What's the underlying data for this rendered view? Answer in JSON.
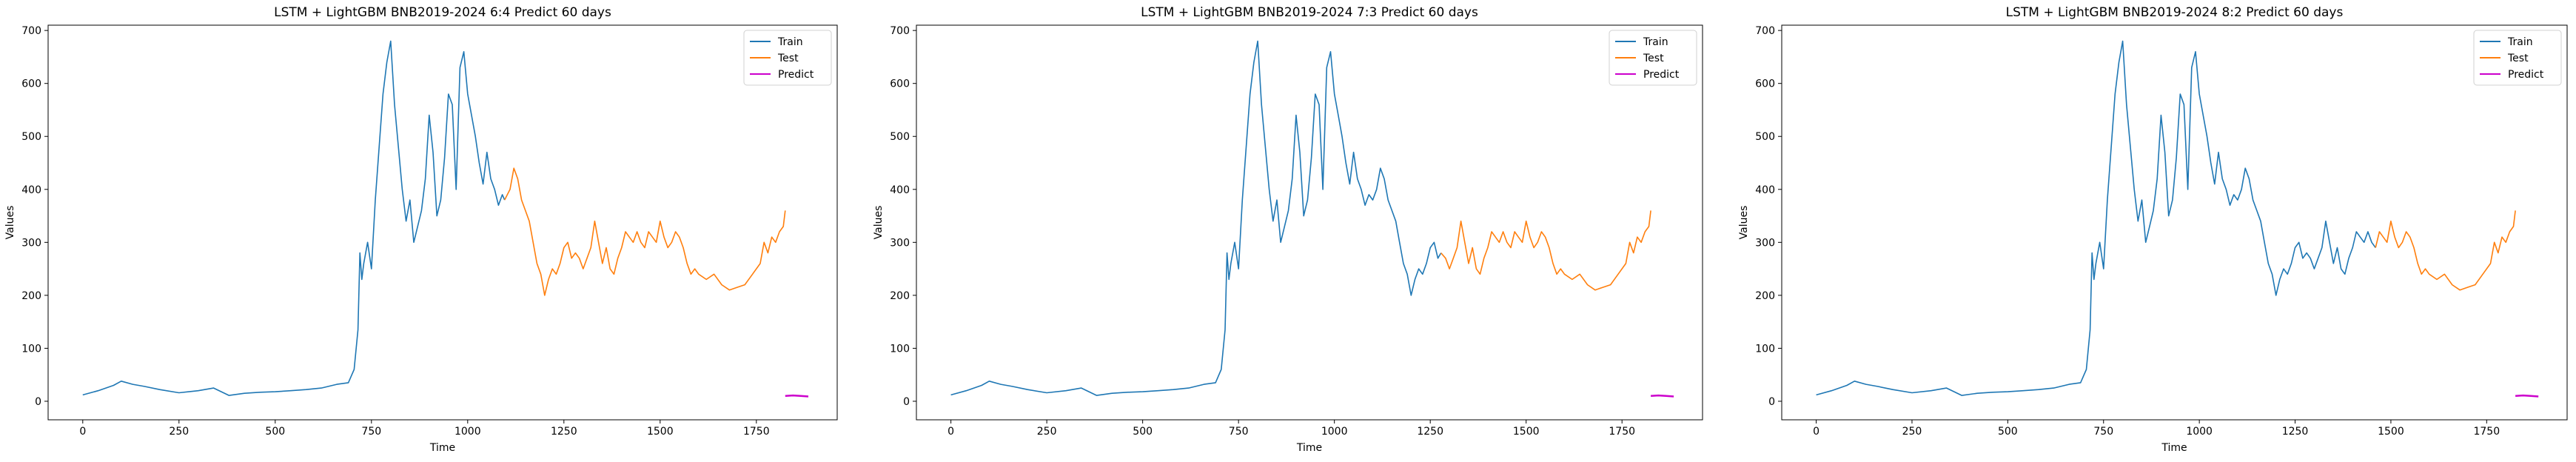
{
  "chart_data": [
    {
      "type": "line",
      "title": "LSTM + LightGBM BNB2019-2024 6:4 Predict 60 days",
      "xlabel": "Time",
      "ylabel": "Values",
      "xlim": [
        -90,
        1960
      ],
      "ylim": [
        -35,
        710
      ],
      "xticks": [
        0,
        250,
        500,
        750,
        1000,
        1250,
        1500,
        1750
      ],
      "yticks": [
        0,
        100,
        200,
        300,
        400,
        500,
        600,
        700
      ],
      "grid": false,
      "legend": "top-right",
      "series": [
        {
          "name": "Train",
          "color": "#1f77b4",
          "x": [
            0,
            40,
            80,
            100,
            130,
            160,
            200,
            250,
            300,
            340,
            380,
            420,
            460,
            500,
            540,
            580,
            620,
            660,
            690,
            705,
            715,
            720,
            725,
            730,
            740,
            750,
            760,
            770,
            780,
            790,
            800,
            810,
            820,
            830,
            840,
            850,
            860,
            870,
            880,
            890,
            900,
            910,
            920,
            930,
            940,
            950,
            960,
            970,
            980,
            990,
            1000,
            1010,
            1020,
            1030,
            1040,
            1050,
            1060,
            1070,
            1080,
            1090,
            1096
          ],
          "y": [
            12,
            20,
            30,
            38,
            32,
            28,
            22,
            16,
            20,
            25,
            11,
            15,
            17,
            18,
            20,
            22,
            25,
            32,
            35,
            60,
            135,
            280,
            230,
            260,
            300,
            250,
            380,
            480,
            580,
            640,
            680,
            560,
            480,
            400,
            340,
            380,
            300,
            330,
            360,
            420,
            540,
            470,
            350,
            380,
            460,
            580,
            560,
            400,
            630,
            660,
            580,
            540,
            500,
            450,
            410,
            470,
            420,
            400,
            370,
            390,
            380
          ]
        },
        {
          "name": "Test",
          "color": "#ff7f0e",
          "x": [
            1096,
            1110,
            1120,
            1130,
            1140,
            1150,
            1160,
            1170,
            1180,
            1190,
            1200,
            1210,
            1220,
            1230,
            1240,
            1250,
            1260,
            1270,
            1280,
            1290,
            1300,
            1310,
            1320,
            1330,
            1340,
            1350,
            1360,
            1370,
            1380,
            1390,
            1400,
            1410,
            1420,
            1430,
            1440,
            1450,
            1460,
            1470,
            1480,
            1490,
            1500,
            1510,
            1520,
            1530,
            1540,
            1550,
            1560,
            1570,
            1580,
            1590,
            1600,
            1620,
            1640,
            1660,
            1680,
            1700,
            1720,
            1740,
            1760,
            1770,
            1780,
            1790,
            1800,
            1810,
            1820,
            1825
          ],
          "y": [
            380,
            400,
            440,
            420,
            380,
            360,
            340,
            300,
            260,
            240,
            200,
            230,
            250,
            240,
            260,
            290,
            300,
            270,
            280,
            270,
            250,
            270,
            290,
            340,
            300,
            260,
            290,
            250,
            240,
            270,
            290,
            320,
            310,
            300,
            320,
            300,
            290,
            320,
            310,
            300,
            340,
            310,
            290,
            300,
            320,
            310,
            290,
            260,
            240,
            250,
            240,
            230,
            240,
            220,
            210,
            215,
            220,
            240,
            260,
            300,
            280,
            310,
            300,
            320,
            330,
            360
          ]
        },
        {
          "name": "Predict",
          "color": "#cc00cc",
          "x": [
            1825,
            1845,
            1865,
            1885
          ],
          "y": [
            10,
            11,
            10,
            9
          ]
        }
      ]
    },
    {
      "type": "line",
      "title": "LSTM + LightGBM BNB2019-2024 7:3 Predict 60 days",
      "xlabel": "Time",
      "ylabel": "Values",
      "xlim": [
        -90,
        1960
      ],
      "ylim": [
        -35,
        710
      ],
      "xticks": [
        0,
        250,
        500,
        750,
        1000,
        1250,
        1500,
        1750
      ],
      "yticks": [
        0,
        100,
        200,
        300,
        400,
        500,
        600,
        700
      ],
      "grid": false,
      "legend": "top-right",
      "series": [
        {
          "name": "Train",
          "color": "#1f77b4",
          "x": [
            0,
            40,
            80,
            100,
            130,
            160,
            200,
            250,
            300,
            340,
            380,
            420,
            460,
            500,
            540,
            580,
            620,
            660,
            690,
            705,
            715,
            720,
            725,
            730,
            740,
            750,
            760,
            770,
            780,
            790,
            800,
            810,
            820,
            830,
            840,
            850,
            860,
            870,
            880,
            890,
            900,
            910,
            920,
            930,
            940,
            950,
            960,
            970,
            980,
            990,
            1000,
            1010,
            1020,
            1030,
            1040,
            1050,
            1060,
            1070,
            1080,
            1090,
            1100,
            1110,
            1120,
            1130,
            1140,
            1150,
            1160,
            1170,
            1180,
            1190,
            1200,
            1210,
            1220,
            1230,
            1240,
            1250,
            1260,
            1270,
            1278
          ],
          "y": [
            12,
            20,
            30,
            38,
            32,
            28,
            22,
            16,
            20,
            25,
            11,
            15,
            17,
            18,
            20,
            22,
            25,
            32,
            35,
            60,
            135,
            280,
            230,
            260,
            300,
            250,
            380,
            480,
            580,
            640,
            680,
            560,
            480,
            400,
            340,
            380,
            300,
            330,
            360,
            420,
            540,
            470,
            350,
            380,
            460,
            580,
            560,
            400,
            630,
            660,
            580,
            540,
            500,
            450,
            410,
            470,
            420,
            400,
            370,
            390,
            380,
            400,
            440,
            420,
            380,
            360,
            340,
            300,
            260,
            240,
            200,
            230,
            250,
            240,
            260,
            290,
            300,
            270,
            280
          ]
        },
        {
          "name": "Test",
          "color": "#ff7f0e",
          "x": [
            1278,
            1290,
            1300,
            1310,
            1320,
            1330,
            1340,
            1350,
            1360,
            1370,
            1380,
            1390,
            1400,
            1410,
            1420,
            1430,
            1440,
            1450,
            1460,
            1470,
            1480,
            1490,
            1500,
            1510,
            1520,
            1530,
            1540,
            1550,
            1560,
            1570,
            1580,
            1590,
            1600,
            1620,
            1640,
            1660,
            1680,
            1700,
            1720,
            1740,
            1760,
            1770,
            1780,
            1790,
            1800,
            1810,
            1820,
            1825
          ],
          "y": [
            280,
            270,
            250,
            270,
            290,
            340,
            300,
            260,
            290,
            250,
            240,
            270,
            290,
            320,
            310,
            300,
            320,
            300,
            290,
            320,
            310,
            300,
            340,
            310,
            290,
            300,
            320,
            310,
            290,
            260,
            240,
            250,
            240,
            230,
            240,
            220,
            210,
            215,
            220,
            240,
            260,
            300,
            280,
            310,
            300,
            320,
            330,
            360
          ]
        },
        {
          "name": "Predict",
          "color": "#cc00cc",
          "x": [
            1825,
            1845,
            1865,
            1885
          ],
          "y": [
            10,
            11,
            10,
            9
          ]
        }
      ]
    },
    {
      "type": "line",
      "title": "LSTM + LightGBM BNB2019-2024 8:2 Predict 60 days",
      "xlabel": "Time",
      "ylabel": "Values",
      "xlim": [
        -90,
        1960
      ],
      "ylim": [
        -35,
        710
      ],
      "xticks": [
        0,
        250,
        500,
        750,
        1000,
        1250,
        1500,
        1750
      ],
      "yticks": [
        0,
        100,
        200,
        300,
        400,
        500,
        600,
        700
      ],
      "grid": false,
      "legend": "top-right",
      "series": [
        {
          "name": "Train",
          "color": "#1f77b4",
          "x": [
            0,
            40,
            80,
            100,
            130,
            160,
            200,
            250,
            300,
            340,
            380,
            420,
            460,
            500,
            540,
            580,
            620,
            660,
            690,
            705,
            715,
            720,
            725,
            730,
            740,
            750,
            760,
            770,
            780,
            790,
            800,
            810,
            820,
            830,
            840,
            850,
            860,
            870,
            880,
            890,
            900,
            910,
            920,
            930,
            940,
            950,
            960,
            970,
            980,
            990,
            1000,
            1010,
            1020,
            1030,
            1040,
            1050,
            1060,
            1070,
            1080,
            1090,
            1100,
            1110,
            1120,
            1130,
            1140,
            1150,
            1160,
            1170,
            1180,
            1190,
            1200,
            1210,
            1220,
            1230,
            1240,
            1250,
            1260,
            1270,
            1280,
            1290,
            1300,
            1310,
            1320,
            1330,
            1340,
            1350,
            1360,
            1370,
            1380,
            1390,
            1400,
            1410,
            1420,
            1430,
            1440,
            1450,
            1460
          ],
          "y": [
            12,
            20,
            30,
            38,
            32,
            28,
            22,
            16,
            20,
            25,
            11,
            15,
            17,
            18,
            20,
            22,
            25,
            32,
            35,
            60,
            135,
            280,
            230,
            260,
            300,
            250,
            380,
            480,
            580,
            640,
            680,
            560,
            480,
            400,
            340,
            380,
            300,
            330,
            360,
            420,
            540,
            470,
            350,
            380,
            460,
            580,
            560,
            400,
            630,
            660,
            580,
            540,
            500,
            450,
            410,
            470,
            420,
            400,
            370,
            390,
            380,
            400,
            440,
            420,
            380,
            360,
            340,
            300,
            260,
            240,
            200,
            230,
            250,
            240,
            260,
            290,
            300,
            270,
            280,
            270,
            250,
            270,
            290,
            340,
            300,
            260,
            290,
            250,
            240,
            270,
            290,
            320,
            310,
            300,
            320,
            300,
            290
          ]
        },
        {
          "name": "Test",
          "color": "#ff7f0e",
          "x": [
            1460,
            1470,
            1480,
            1490,
            1500,
            1510,
            1520,
            1530,
            1540,
            1550,
            1560,
            1570,
            1580,
            1590,
            1600,
            1620,
            1640,
            1660,
            1680,
            1700,
            1720,
            1740,
            1760,
            1770,
            1780,
            1790,
            1800,
            1810,
            1820,
            1825
          ],
          "y": [
            290,
            320,
            310,
            300,
            340,
            310,
            290,
            300,
            320,
            310,
            290,
            260,
            240,
            250,
            240,
            230,
            240,
            220,
            210,
            215,
            220,
            240,
            260,
            300,
            280,
            310,
            300,
            320,
            330,
            360
          ]
        },
        {
          "name": "Predict",
          "color": "#cc00cc",
          "x": [
            1825,
            1845,
            1865,
            1885
          ],
          "y": [
            10,
            11,
            10,
            9
          ]
        }
      ]
    }
  ]
}
